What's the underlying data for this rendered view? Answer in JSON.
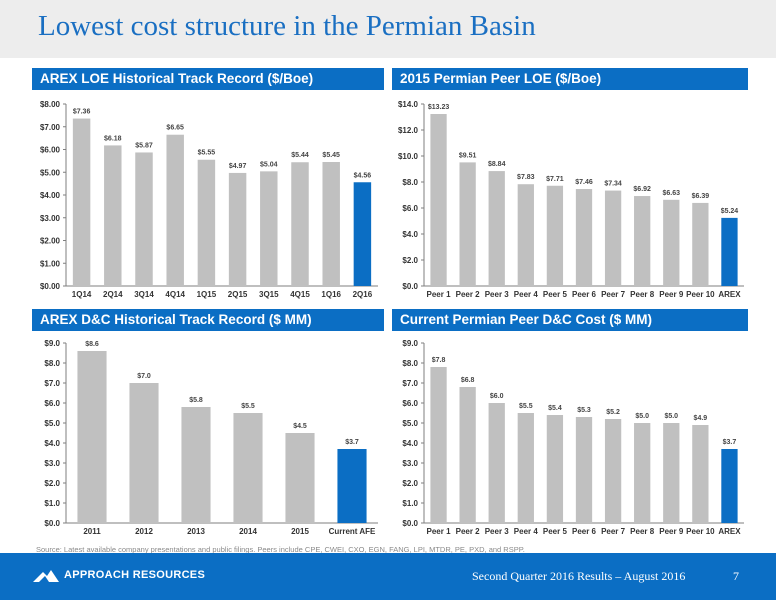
{
  "page": {
    "title": "Lowest cost structure in the Permian Basin",
    "source": "Source: Latest available company presentations and public filings.  Peers include CPE, CWEI, CXO, EGN, FANG, LPI, MTDR, PE, PXD, and RSPP.",
    "footer": {
      "company": "APPROACH RESOURCES",
      "subtitle": "Second Quarter 2016 Results – August 2016",
      "page_number": "7"
    },
    "colors": {
      "brand_blue": "#0b6ec4",
      "bar_grey": "#c0c0c0",
      "highlight_bar": "#0b6ec4",
      "title_blue": "#1a6fc2"
    },
    "icons": {
      "logo": "mountain-logo-icon"
    }
  },
  "chart_data": [
    {
      "type": "bar",
      "title": "AREX LOE Historical Track Record ($/Boe)",
      "categories": [
        "1Q14",
        "2Q14",
        "3Q14",
        "4Q14",
        "1Q15",
        "2Q15",
        "3Q15",
        "4Q15",
        "1Q16",
        "2Q16"
      ],
      "values": [
        7.36,
        6.18,
        5.87,
        6.65,
        5.55,
        4.97,
        5.04,
        5.44,
        5.45,
        4.56
      ],
      "value_labels": [
        "$7.36",
        "$6.18",
        "$5.87",
        "$6.65",
        "$5.55",
        "$4.97",
        "$5.04",
        "$5.44",
        "$5.45",
        "$4.56"
      ],
      "highlight_index": 9,
      "ylim": [
        0,
        8
      ],
      "yticks": [
        0,
        1,
        2,
        3,
        4,
        5,
        6,
        7,
        8
      ],
      "ytick_labels": [
        "$0.00",
        "$1.00",
        "$2.00",
        "$3.00",
        "$4.00",
        "$5.00",
        "$6.00",
        "$7.00",
        "$8.00"
      ],
      "grid": false
    },
    {
      "type": "bar",
      "title": "2015 Permian Peer LOE ($/Boe)",
      "categories": [
        "Peer 1",
        "Peer 2",
        "Peer 3",
        "Peer 4",
        "Peer 5",
        "Peer 6",
        "Peer 7",
        "Peer 8",
        "Peer 9",
        "Peer 10",
        "AREX"
      ],
      "values": [
        13.23,
        9.51,
        8.84,
        7.83,
        7.71,
        7.46,
        7.34,
        6.92,
        6.63,
        6.39,
        5.24
      ],
      "value_labels": [
        "$13.23",
        "$9.51",
        "$8.84",
        "$7.83",
        "$7.71",
        "$7.46",
        "$7.34",
        "$6.92",
        "$6.63",
        "$6.39",
        "$5.24"
      ],
      "highlight_index": 10,
      "ylim": [
        0,
        14
      ],
      "yticks": [
        0,
        2,
        4,
        6,
        8,
        10,
        12,
        14
      ],
      "ytick_labels": [
        "$0.0",
        "$2.0",
        "$4.0",
        "$6.0",
        "$8.0",
        "$10.0",
        "$12.0",
        "$14.0"
      ],
      "grid": false
    },
    {
      "type": "bar",
      "title": "AREX D&C Historical Track Record ($ MM)",
      "categories": [
        "2011",
        "2012",
        "2013",
        "2014",
        "2015",
        "Current AFE"
      ],
      "values": [
        8.6,
        7.0,
        5.8,
        5.5,
        4.5,
        3.7
      ],
      "value_labels": [
        "$8.6",
        "$7.0",
        "$5.8",
        "$5.5",
        "$4.5",
        "$3.7"
      ],
      "highlight_index": 5,
      "ylim": [
        0,
        9
      ],
      "yticks": [
        0,
        1,
        2,
        3,
        4,
        5,
        6,
        7,
        8,
        9
      ],
      "ytick_labels": [
        "$0.0",
        "$1.0",
        "$2.0",
        "$3.0",
        "$4.0",
        "$5.0",
        "$6.0",
        "$7.0",
        "$8.0",
        "$9.0"
      ],
      "grid": false
    },
    {
      "type": "bar",
      "title": "Current Permian Peer D&C Cost ($ MM)",
      "categories": [
        "Peer 1",
        "Peer 2",
        "Peer 3",
        "Peer 4",
        "Peer 5",
        "Peer 6",
        "Peer 7",
        "Peer 8",
        "Peer 9",
        "Peer 10",
        "AREX"
      ],
      "values": [
        7.8,
        6.8,
        6.0,
        5.5,
        5.4,
        5.3,
        5.2,
        5.0,
        5.0,
        4.9,
        3.7
      ],
      "value_labels": [
        "$7.8",
        "$6.8",
        "$6.0",
        "$5.5",
        "$5.4",
        "$5.3",
        "$5.2",
        "$5.0",
        "$5.0",
        "$4.9",
        "$3.7"
      ],
      "highlight_index": 10,
      "ylim": [
        0,
        9
      ],
      "yticks": [
        0,
        1,
        2,
        3,
        4,
        5,
        6,
        7,
        8,
        9
      ],
      "ytick_labels": [
        "$0.0",
        "$1.0",
        "$2.0",
        "$3.0",
        "$4.0",
        "$5.0",
        "$6.0",
        "$7.0",
        "$8.0",
        "$9.0"
      ],
      "grid": false
    }
  ]
}
